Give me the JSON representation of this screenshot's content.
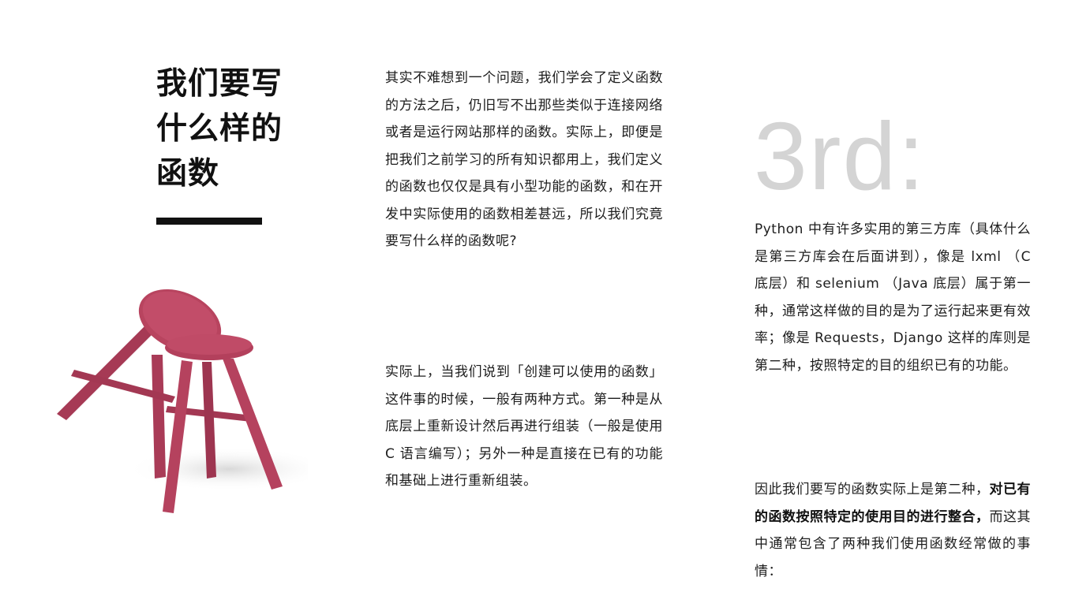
{
  "title": {
    "line1": "我们要写",
    "line2": "什么样的",
    "line3": "函数"
  },
  "middle": {
    "paragraph1": "其实不难想到一个问题，我们学会了定义函数的方法之后，仍旧写不出那些类似于连接网络或者是运行网站那样的函数。实际上，即便是把我们之前学习的所有知识都用上，我们定义的函数也仅仅是具有小型功能的函数，和在开发中实际使用的函数相差甚远，所以我们究竟要写什么样的函数呢?",
    "paragraph2": "实际上，当我们说到「创建可以使用的函数」这件事的时候，一般有两种方式。第一种是从底层上重新设计然后再进行组装（一般是使用 C 语言编写）；另外一种是直接在已有的功能和基础上进行重新组装。"
  },
  "right": {
    "big_label": "3rd:",
    "paragraph1": "Python 中有许多实用的第三方库（具体什么是第三方库会在后面讲到），像是 lxml （C 底层）和 selenium （Java 底层）属于第一种，通常这样做的目的是为了运行起来更有效率；像是 Requests，Django 这样的库则是第二种，按照特定的目的组织已有的功能。",
    "paragraph2_start": "因此我们要写的函数实际上是第二种，",
    "paragraph2_bold": "对已有的函数按照特定的使用目的进行整合，",
    "paragraph2_end": "而这其中通常包含了两种我们使用函数经常做的事情："
  },
  "colors": {
    "stool": "#b5425e",
    "stool_dark": "#8f2f47",
    "big_label": "#d4d4d4",
    "title": "#111111"
  }
}
